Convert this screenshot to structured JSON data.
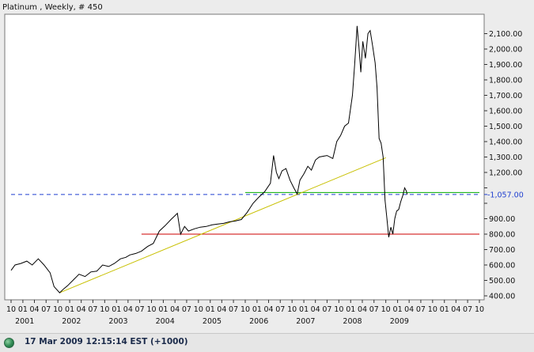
{
  "chart_data": {
    "type": "line",
    "title": "Platinum , Weekly, # 450",
    "ylim": [
      400,
      2200
    ],
    "xlim": [
      "2000-10-01",
      "2010-10-01"
    ],
    "y_ticks": [
      400,
      500,
      600,
      700,
      800,
      900,
      1000,
      1100,
      1200,
      1300,
      1400,
      1500,
      1600,
      1700,
      1800,
      1900,
      2000,
      2100
    ],
    "y_tick_labels": [
      "400.00",
      "500.00",
      "600.00",
      "700.00",
      "800.00",
      "900.00",
      "",
      "",
      "1,200.00",
      "1,300.00",
      "1,400.00",
      "1,500.00",
      "1,600.00",
      "1,700.00",
      "1,800.00",
      "1,900.00",
      "2,000.00",
      "2,100.00"
    ],
    "x_month_labels": [
      "10",
      "01",
      "04",
      "07",
      "10",
      "01",
      "04",
      "07",
      "10",
      "01",
      "04",
      "07",
      "10",
      "01",
      "04",
      "07",
      "10",
      "01",
      "04",
      "07",
      "10",
      "01",
      "04",
      "07",
      "10",
      "01",
      "04",
      "07",
      "10",
      "01",
      "04",
      "07",
      "10",
      "01",
      "04",
      "07",
      "10",
      "01",
      "04",
      "07",
      "10"
    ],
    "x_year_labels": [
      "2001",
      "2002",
      "2003",
      "2004",
      "2005",
      "2006",
      "2007",
      "2008",
      "2009"
    ],
    "highlight_value": 1057,
    "highlight_label": "1,057.00",
    "grid": false,
    "series": [
      {
        "color": "#000000",
        "x": [
          "2000-10-01",
          "2000-11-01",
          "2000-12-15",
          "2001-02-01",
          "2001-03-15",
          "2001-05-01",
          "2001-06-15",
          "2001-08-01",
          "2001-09-01",
          "2001-10-15",
          "2001-11-15",
          "2001-12-15",
          "2002-02-01",
          "2002-03-15",
          "2002-05-01",
          "2002-06-15",
          "2002-08-01",
          "2002-09-15",
          "2002-11-01",
          "2002-12-15",
          "2003-02-01",
          "2003-03-15",
          "2003-04-15",
          "2003-06-01",
          "2003-07-15",
          "2003-09-01",
          "2003-10-15",
          "2003-12-01",
          "2004-01-15",
          "2004-03-01",
          "2004-04-01",
          "2004-04-20",
          "2004-05-15",
          "2004-06-15",
          "2004-07-15",
          "2004-09-01",
          "2004-10-15",
          "2004-12-01",
          "2005-01-15",
          "2005-03-01",
          "2005-04-15",
          "2005-06-01",
          "2005-07-15",
          "2005-09-01",
          "2005-10-15",
          "2005-12-01",
          "2006-01-15",
          "2006-03-01",
          "2006-04-15",
          "2006-05-10",
          "2006-06-01",
          "2006-06-20",
          "2006-07-15",
          "2006-08-15",
          "2006-09-15",
          "2006-10-15",
          "2006-11-10",
          "2006-12-01",
          "2007-01-01",
          "2007-02-01",
          "2007-03-01",
          "2007-04-01",
          "2007-05-01",
          "2007-06-01",
          "2007-07-01",
          "2007-08-15",
          "2007-09-15",
          "2007-10-15",
          "2007-11-15",
          "2007-12-15",
          "2008-01-15",
          "2008-02-01",
          "2008-02-20",
          "2008-03-05",
          "2008-03-20",
          "2008-04-05",
          "2008-04-25",
          "2008-05-15",
          "2008-06-01",
          "2008-06-20",
          "2008-07-10",
          "2008-07-25",
          "2008-08-10",
          "2008-08-25",
          "2008-09-10",
          "2008-09-25",
          "2008-10-10",
          "2008-10-24",
          "2008-11-10",
          "2008-11-25",
          "2008-12-10",
          "2008-12-25",
          "2009-01-10",
          "2009-01-25",
          "2009-02-10",
          "2009-02-25",
          "2009-03-10",
          "2009-03-17"
        ],
        "y": [
          565,
          600,
          610,
          625,
          600,
          640,
          600,
          550,
          460,
          420,
          445,
          465,
          505,
          540,
          525,
          555,
          560,
          600,
          590,
          610,
          640,
          650,
          665,
          675,
          690,
          720,
          740,
          820,
          855,
          895,
          920,
          935,
          800,
          850,
          820,
          835,
          845,
          850,
          860,
          865,
          870,
          880,
          885,
          895,
          940,
          1000,
          1040,
          1075,
          1130,
          1310,
          1200,
          1160,
          1210,
          1225,
          1150,
          1100,
          1060,
          1150,
          1190,
          1240,
          1215,
          1280,
          1300,
          1305,
          1310,
          1290,
          1400,
          1440,
          1500,
          1520,
          1700,
          1900,
          2150,
          2020,
          1850,
          2050,
          1940,
          2100,
          2120,
          2020,
          1910,
          1750,
          1420,
          1390,
          1300,
          1020,
          900,
          780,
          845,
          800,
          900,
          950,
          960,
          1010,
          1050,
          1100,
          1080,
          1057
        ]
      }
    ],
    "trendline": {
      "color": "#c8c000",
      "x": [
        "2001-10-15",
        "2008-10-01"
      ],
      "y": [
        420,
        1295
      ]
    },
    "hlines": [
      {
        "color": "#cc0000",
        "y": 800,
        "x_start": "2003-07-15",
        "x_end": "2010-10-01"
      },
      {
        "color": "#00aa00",
        "y": 1070,
        "x_start": "2005-10-01",
        "x_end": "2010-10-01"
      },
      {
        "color": "#1f3fd0",
        "y": 1057,
        "x_start": "2000-10-01",
        "x_end": "2010-10-01",
        "dashed": true
      }
    ]
  },
  "status": {
    "text": "17 Mar 2009 12:15:14  EST (+1000)"
  }
}
